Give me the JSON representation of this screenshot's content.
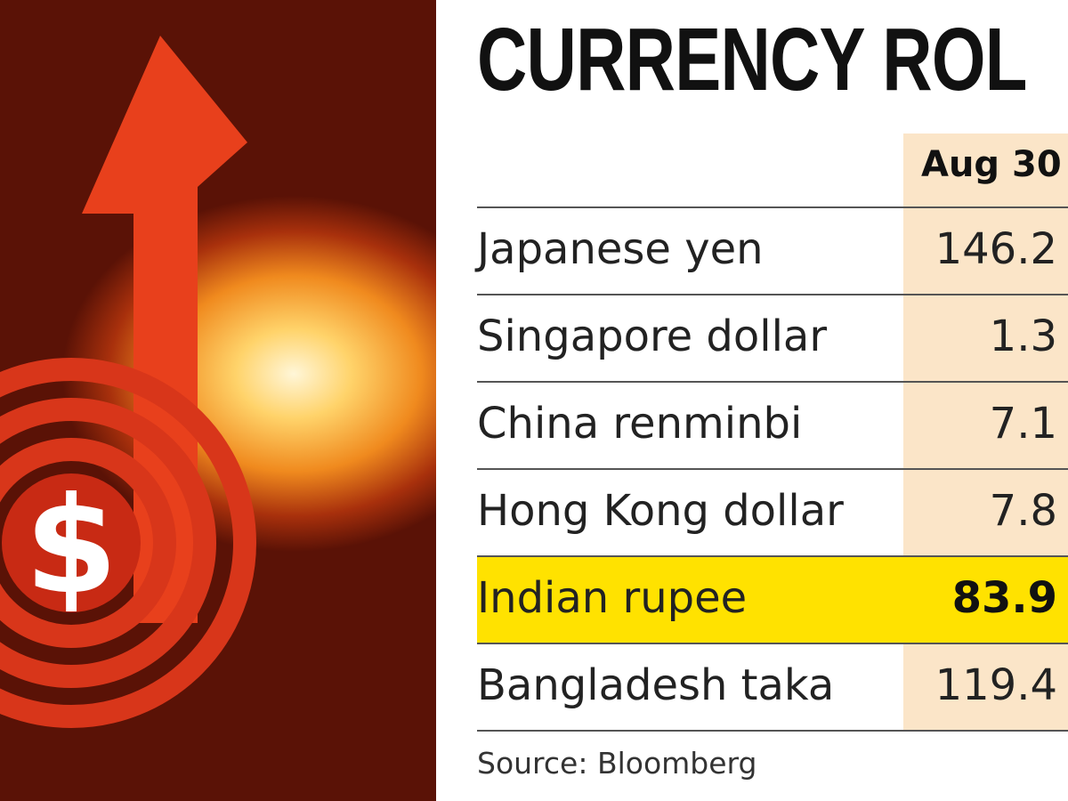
{
  "illustration": {
    "symbol": "$"
  },
  "title": "CURRENCY ROL",
  "table": {
    "header": "Aug 30",
    "rows": [
      [
        "Japanese yen",
        "146.2"
      ],
      [
        "Singapore dollar",
        "1.3"
      ],
      [
        "China renminbi",
        "7.1"
      ],
      [
        "Hong Kong dollar",
        "7.8"
      ],
      [
        "Indian rupee",
        "83.9"
      ],
      [
        "Bangladesh taka",
        "119.4"
      ]
    ],
    "highlight_row": 4
  },
  "source": "Source: Bloomberg"
}
